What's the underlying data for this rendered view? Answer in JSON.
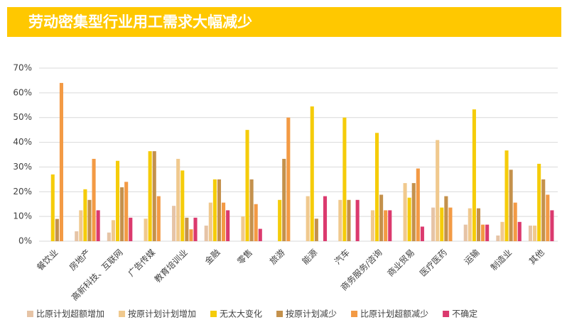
{
  "chart_data": {
    "type": "bar",
    "title": "劳动密集型行业用工需求大幅减少",
    "categories": [
      "餐饮业",
      "房地产",
      "高新科技、互联网",
      "广告传媒",
      "教育培训业",
      "金融",
      "零售",
      "旅游",
      "能源",
      "汽车",
      "商务服务/咨询",
      "商业贸易",
      "医疗医药",
      "运输",
      "制造业",
      "其他"
    ],
    "series": [
      {
        "name": "比原计划超额增加",
        "color": "#e6c4a6",
        "values": [
          0,
          4,
          3.5,
          0,
          14.3,
          6.3,
          0,
          0,
          0,
          0,
          0,
          0,
          13.6,
          6.7,
          2.3,
          6.3
        ]
      },
      {
        "name": "按原计划计划增加",
        "color": "#f0c98e",
        "values": [
          0,
          12.5,
          8.5,
          9.1,
          33.3,
          15.6,
          10,
          0,
          18.2,
          16.7,
          12.5,
          23.5,
          40.9,
          13.3,
          7.8,
          6.3
        ]
      },
      {
        "name": "无太大变化",
        "color": "#f5cc0a",
        "values": [
          27,
          21,
          32.5,
          36.4,
          28.6,
          25,
          45,
          16.7,
          54.5,
          50,
          43.8,
          17.6,
          13.6,
          53.3,
          36.7,
          31.3
        ]
      },
      {
        "name": "按原计划减少",
        "color": "#c4914c",
        "values": [
          9,
          16.7,
          21.8,
          36.4,
          9.5,
          25,
          25,
          33.3,
          9.1,
          16.7,
          18.8,
          23.5,
          18.2,
          13.3,
          28.9,
          25
        ]
      },
      {
        "name": "比原计划超额减少",
        "color": "#f39a44",
        "values": [
          64,
          33.3,
          24,
          18.2,
          4.8,
          15.6,
          15,
          50,
          0,
          0,
          12.5,
          29.4,
          13.6,
          6.7,
          15.6,
          18.8
        ]
      },
      {
        "name": "不确定",
        "color": "#db3a6e",
        "values": [
          0,
          12.5,
          9.5,
          0,
          9.5,
          12.5,
          5,
          0,
          18.2,
          16.7,
          12.5,
          5.9,
          0,
          6.7,
          7.8,
          12.5
        ]
      }
    ],
    "ylim": [
      0,
      70
    ],
    "yticks": [
      {
        "value": 0,
        "label": "0%"
      },
      {
        "value": 10,
        "label": "10%"
      },
      {
        "value": 20,
        "label": "20%"
      },
      {
        "value": 30,
        "label": "30%"
      },
      {
        "value": 40,
        "label": "40%"
      },
      {
        "value": 50,
        "label": "50%"
      },
      {
        "value": 60,
        "label": "60%"
      },
      {
        "value": 70,
        "label": "70%"
      }
    ],
    "grid": true
  }
}
